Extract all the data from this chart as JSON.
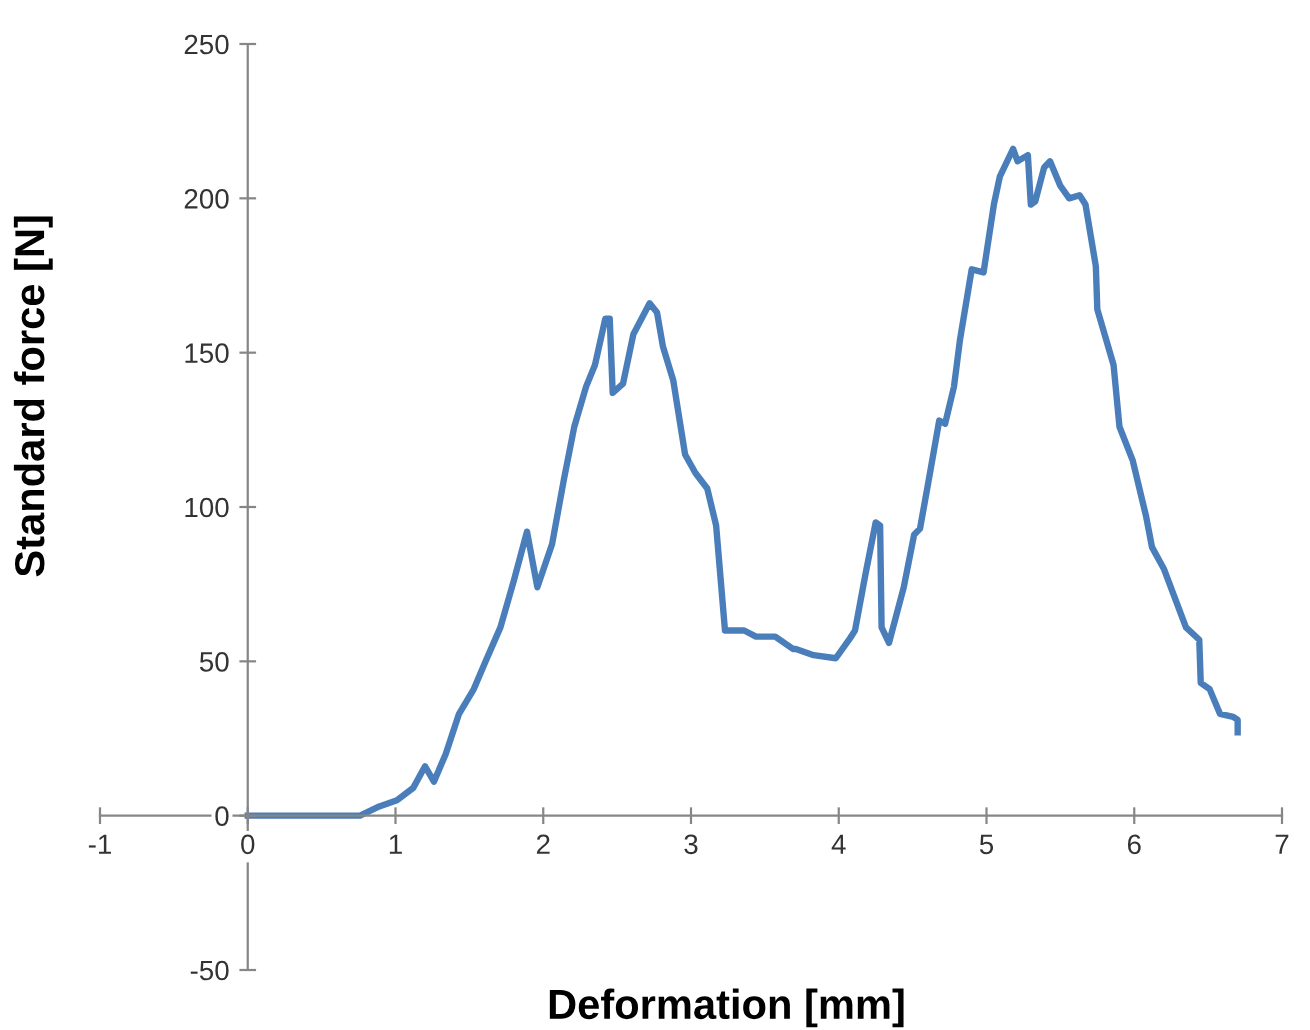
{
  "chart_data": {
    "type": "line",
    "xlabel": "Deformation [mm]",
    "ylabel": "Standard force [N]",
    "xlim": [
      -1,
      7
    ],
    "ylim": [
      -50,
      250
    ],
    "xticks": [
      -1,
      0,
      1,
      2,
      3,
      4,
      5,
      6,
      7
    ],
    "yticks": [
      -50,
      0,
      50,
      100,
      150,
      200,
      250
    ],
    "grid": false,
    "legend": false,
    "marker": "none",
    "line_style": "solid",
    "series": [
      {
        "color": "#4a7ebb",
        "x": [
          0,
          0.76,
          0.89,
          1.01,
          1.12,
          1.2,
          1.26,
          1.34,
          1.43,
          1.53,
          1.61,
          1.71,
          1.8,
          1.89,
          1.96,
          2.06,
          2.14,
          2.21,
          2.29,
          2.35,
          2.42,
          2.45,
          2.47,
          2.54,
          2.61,
          2.72,
          2.77,
          2.81,
          2.88,
          2.96,
          3.03,
          3.11,
          3.17,
          3.23,
          3.36,
          3.44,
          3.57,
          3.69,
          3.71,
          3.83,
          3.98,
          4.07,
          4.11,
          4.18,
          4.25,
          4.28,
          4.29,
          4.34,
          4.44,
          4.51,
          4.55,
          4.61,
          4.68,
          4.72,
          4.78,
          4.82,
          4.9,
          4.98,
          5.05,
          5.09,
          5.18,
          5.21,
          5.28,
          5.3,
          5.33,
          5.39,
          5.43,
          5.5,
          5.56,
          5.63,
          5.67,
          5.74,
          5.75,
          5.86,
          5.9,
          5.99,
          6.08,
          6.12,
          6.2,
          6.35,
          6.44,
          6.45,
          6.51,
          6.58,
          6.67,
          6.7,
          6.7
        ],
        "values": [
          0,
          0,
          3,
          5,
          9,
          16,
          11,
          20,
          33,
          41,
          50,
          61,
          76,
          92,
          74,
          88,
          109,
          126,
          139,
          146,
          161,
          161,
          137,
          140,
          156,
          166,
          163,
          152,
          141,
          117,
          111,
          106,
          94,
          60,
          60,
          58,
          58,
          54,
          54,
          52,
          51,
          57,
          60,
          78,
          95,
          94,
          61,
          56,
          74,
          91,
          93,
          109,
          128,
          127,
          139,
          154,
          177,
          176,
          198,
          207,
          216,
          212,
          214,
          198,
          199,
          210,
          212,
          204,
          200,
          201,
          198,
          178,
          164,
          146,
          126,
          115,
          97,
          87,
          80,
          61,
          57,
          43,
          41,
          33,
          32,
          31,
          27
        ]
      }
    ]
  }
}
